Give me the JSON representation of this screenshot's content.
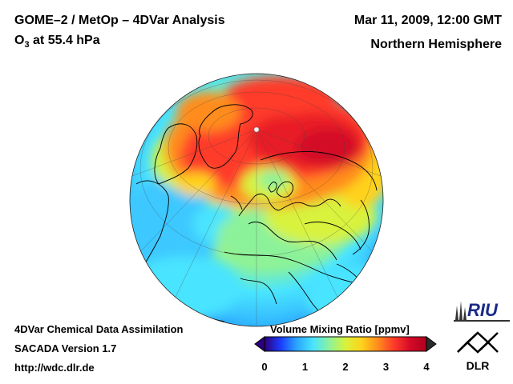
{
  "header": {
    "title_left": "GOME–2 / MetOp – 4DVar Analysis",
    "species_main": "O",
    "species_sub": "3",
    "species_rest": " at 55.4 hPa",
    "date": "Mar 11, 2009, 12:00 GMT",
    "region": "Northern Hemisphere"
  },
  "footer": {
    "line1": "4DVar Chemical Data Assimilation",
    "line2": "SACADA Version 1.7",
    "line3": "http://wdc.dlr.de"
  },
  "colorbar": {
    "title": "Volume Mixing Ratio [ppmv]",
    "ticks": [
      "0",
      "1",
      "2",
      "3",
      "4"
    ],
    "min": 0,
    "max": 4,
    "colors": [
      "#2c007a",
      "#1c3cff",
      "#2aa6ff",
      "#49e4ff",
      "#8cf29a",
      "#d8f23c",
      "#ffd21c",
      "#ff8c1c",
      "#ff3a2a",
      "#d40a28",
      "#b00020"
    ]
  },
  "logos": {
    "riu_text": "RIU",
    "dlr_text": "DLR"
  },
  "map": {
    "projection": "orthographic, north polar view",
    "field": "ozone volume mixing ratio"
  }
}
